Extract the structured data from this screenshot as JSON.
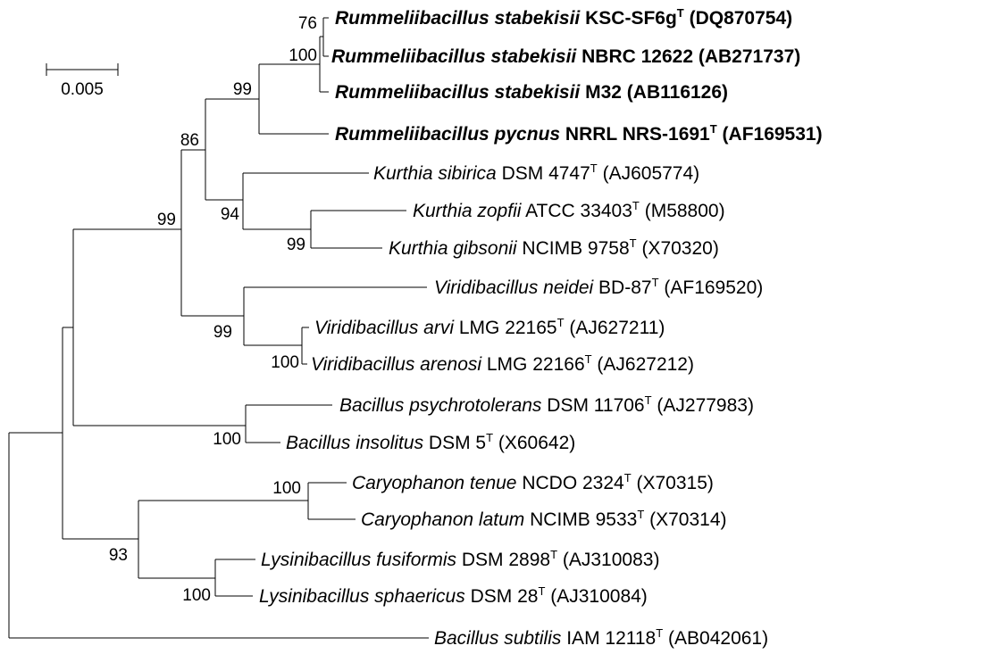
{
  "scale_bar": {
    "label": "0.005"
  },
  "taxa": [
    {
      "genus": "Rummeliibacillus",
      "species": "stabekisii",
      "strain": "KSC-SF6g",
      "type": "T",
      "accession": "(DQ870754)",
      "bold": true
    },
    {
      "genus": "Rummeliibacillus",
      "species": "stabekisii",
      "strain": "NBRC 12622",
      "type": "",
      "accession": "(AB271737)",
      "bold": true
    },
    {
      "genus": "Rummeliibacillus",
      "species": "stabekisii",
      "strain": "M32",
      "type": "",
      "accession": "(AB116126)",
      "bold": true
    },
    {
      "genus": "Rummeliibacillus",
      "species": "pycnus",
      "strain": "NRRL NRS-1691",
      "type": "T",
      "accession": "(AF169531)",
      "bold": true
    },
    {
      "genus": "Kurthia",
      "species": "sibirica",
      "strain": "DSM 4747",
      "type": "T",
      "accession": "(AJ605774)",
      "bold": false
    },
    {
      "genus": "Kurthia",
      "species": "zopfii",
      "strain": "ATCC 33403",
      "type": "T",
      "accession": "(M58800)",
      "bold": false
    },
    {
      "genus": "Kurthia",
      "species": "gibsonii",
      "strain": "NCIMB 9758",
      "type": "T",
      "accession": "(X70320)",
      "bold": false
    },
    {
      "genus": "Viridibacillus",
      "species": "neidei",
      "strain": "BD-87",
      "type": "T",
      "accession": "(AF169520)",
      "bold": false
    },
    {
      "genus": "Viridibacillus",
      "species": "arvi",
      "strain": "LMG 22165",
      "type": "T",
      "accession": "(AJ627211)",
      "bold": false
    },
    {
      "genus": "Viridibacillus",
      "species": "arenosi",
      "strain": "LMG 22166",
      "type": "T",
      "accession": "(AJ627212)",
      "bold": false
    },
    {
      "genus": "Bacillus",
      "species": "psychrotolerans",
      "strain": "DSM 11706",
      "type": "T",
      "accession": "(AJ277983)",
      "bold": false
    },
    {
      "genus": "Bacillus",
      "species": "insolitus",
      "strain": "DSM 5",
      "type": "T",
      "accession": "(X60642)",
      "bold": false
    },
    {
      "genus": "Caryophanon",
      "species": "tenue",
      "strain": "NCDO 2324",
      "type": "T",
      "accession": "(X70315)",
      "bold": false
    },
    {
      "genus": "Caryophanon",
      "species": "latum",
      "strain": "NCIMB 9533",
      "type": "T",
      "accession": "(X70314)",
      "bold": false
    },
    {
      "genus": "Lysinibacillus",
      "species": "fusiformis",
      "strain": "DSM 2898",
      "type": "T",
      "accession": "(AJ310083)",
      "bold": false
    },
    {
      "genus": "Lysinibacillus",
      "species": "sphaericus",
      "strain": "DSM 28",
      "type": "T",
      "accession": "(AJ310084)",
      "bold": false
    },
    {
      "genus": "Bacillus",
      "species": "subtilis",
      "strain": "IAM 12118",
      "type": "T",
      "accession": "(AB042061)",
      "bold": false
    }
  ],
  "bootstrap": [
    "76",
    "100",
    "99",
    "86",
    "94",
    "99",
    "99",
    "99",
    "100",
    "100",
    "100",
    "93",
    "100"
  ]
}
